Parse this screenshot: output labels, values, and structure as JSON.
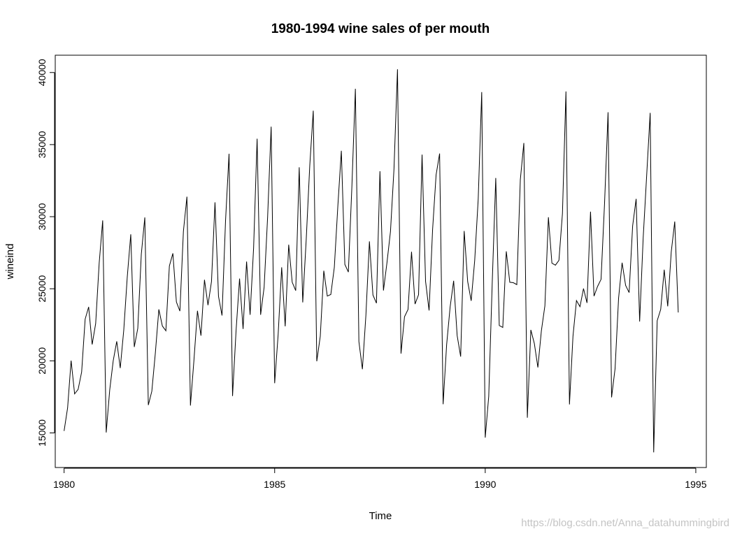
{
  "chart_data": {
    "type": "line",
    "title": "1980-1994  wine sales of per mouth",
    "xlabel": "Time",
    "ylabel": "wineind",
    "xlim": [
      1979.79,
      1995.25
    ],
    "ylim": [
      12600,
      41200
    ],
    "x_ticks": [
      1980,
      1985,
      1990,
      1995
    ],
    "y_ticks": [
      15000,
      20000,
      25000,
      30000,
      35000,
      40000
    ],
    "x_tick_labels": [
      "1980",
      "1985",
      "1990",
      "1995"
    ],
    "y_tick_labels": [
      "15000",
      "20000",
      "25000",
      "30000",
      "35000",
      "40000"
    ],
    "start": 1980,
    "frequency": 12,
    "series": [
      {
        "name": "wineind",
        "color": "#000000",
        "values": [
          15136,
          16733,
          20016,
          17708,
          18019,
          19227,
          22893,
          23739,
          21133,
          22591,
          26786,
          29740,
          15028,
          17977,
          20008,
          21354,
          19498,
          22125,
          25817,
          28779,
          20960,
          22254,
          27392,
          29945,
          16933,
          17892,
          20533,
          23569,
          22417,
          22084,
          26580,
          27454,
          24081,
          23451,
          28991,
          31386,
          16896,
          20045,
          23471,
          21747,
          25621,
          23859,
          25500,
          30998,
          24475,
          23145,
          29701,
          34365,
          17556,
          22077,
          25702,
          22214,
          26886,
          23191,
          27831,
          35406,
          23195,
          25110,
          30009,
          36242,
          18450,
          21845,
          26488,
          22394,
          28057,
          25451,
          24872,
          33424,
          24052,
          28449,
          33533,
          37351,
          19969,
          21701,
          26249,
          24493,
          24603,
          26485,
          30723,
          34569,
          26689,
          26157,
          32064,
          38870,
          21337,
          19419,
          23166,
          28286,
          24570,
          24001,
          33151,
          24878,
          26804,
          28967,
          33311,
          40226,
          20504,
          23060,
          23562,
          27562,
          23940,
          24584,
          34303,
          25517,
          23494,
          29095,
          32903,
          34379,
          16991,
          21109,
          23740,
          25552,
          21752,
          20294,
          29009,
          25500,
          24166,
          26960,
          31222,
          38641,
          14672,
          17543,
          25453,
          32683,
          22449,
          22316,
          27595,
          25451,
          25421,
          25288,
          32568,
          35110,
          16052,
          22146,
          21198,
          19543,
          22084,
          23816,
          29961,
          26773,
          26635,
          26972,
          30207,
          38687,
          16974,
          21697,
          24179,
          23757,
          25013,
          24019,
          30345,
          24488,
          25156,
          25650,
          30923,
          37240,
          17466,
          19463,
          24352,
          26805,
          25236,
          24735,
          29356,
          31234,
          22724,
          28496,
          32857,
          37198,
          13652,
          22784,
          23565,
          26323,
          23779,
          27549,
          29660,
          23356
        ]
      }
    ]
  },
  "watermark": "https://blog.csdn.net/Anna_datahummingbird"
}
